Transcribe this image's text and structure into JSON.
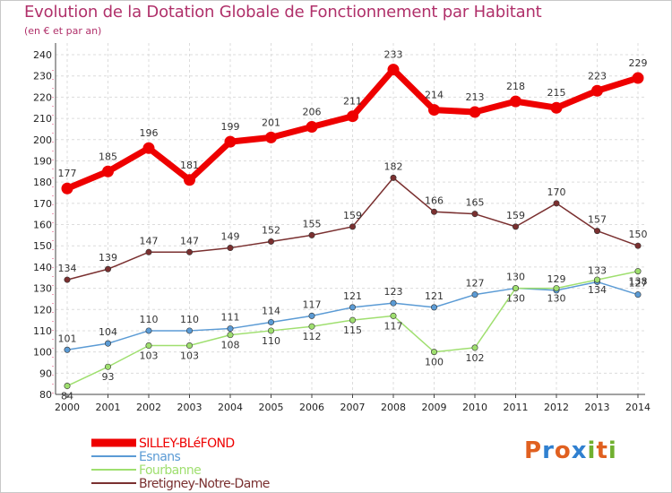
{
  "chart_data": {
    "type": "line",
    "title": "Evolution de la Dotation Globale de Fonctionnement par Habitant",
    "subtitle": "(en € et par an)",
    "xlabel": "",
    "ylabel": "",
    "ylim": [
      80,
      240
    ],
    "ytick_step": 10,
    "grid": true,
    "legend_position": "bottom-left",
    "categories": [
      "2000",
      "2001",
      "2002",
      "2003",
      "2004",
      "2005",
      "2006",
      "2007",
      "2008",
      "2009",
      "2010",
      "2011",
      "2012",
      "2013",
      "2014"
    ],
    "series": [
      {
        "name": "SILLEY-BLéFOND",
        "color": "#ee0000",
        "values": [
          177,
          185,
          196,
          181,
          199,
          201,
          206,
          211,
          233,
          214,
          213,
          218,
          215,
          223,
          229
        ]
      },
      {
        "name": "Esnans",
        "color": "#5b9bd5",
        "values": [
          101,
          104,
          110,
          110,
          111,
          114,
          117,
          121,
          123,
          121,
          127,
          130,
          129,
          133,
          127
        ]
      },
      {
        "name": "Fourbanne",
        "color": "#9fdf6f",
        "values": [
          84,
          93,
          103,
          103,
          108,
          110,
          112,
          115,
          117,
          100,
          102,
          130,
          130,
          134,
          138
        ]
      },
      {
        "name": "Bretigney-Notre-Dame",
        "color": "#7a3030",
        "values": [
          134,
          139,
          147,
          147,
          149,
          152,
          155,
          159,
          182,
          166,
          165,
          159,
          170,
          157,
          150
        ]
      }
    ]
  },
  "branding": {
    "logo_letters": [
      "P",
      "r",
      "o",
      "x",
      "i",
      "t",
      "i"
    ],
    "logo_colors": [
      "#e06020",
      "#3080d0",
      "#e06020",
      "#3080d0",
      "#70b030",
      "#e06020",
      "#70b030"
    ]
  }
}
